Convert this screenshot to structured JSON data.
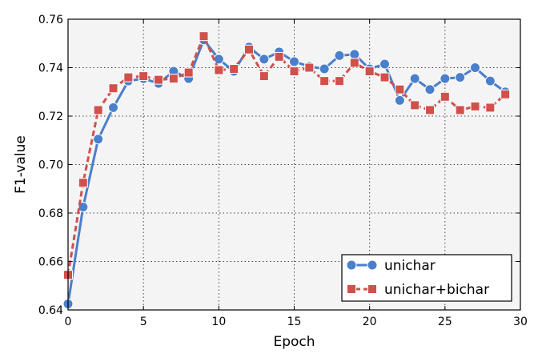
{
  "chart_data": {
    "type": "line",
    "title": "",
    "xlabel": "Epoch",
    "ylabel": "F1-value",
    "xlim": [
      0,
      30
    ],
    "ylim": [
      0.64,
      0.76
    ],
    "xticks": [
      "0",
      "5",
      "10",
      "15",
      "20",
      "25",
      "30"
    ],
    "yticks": [
      "0.64",
      "0.66",
      "0.68",
      "0.70",
      "0.72",
      "0.74",
      "0.76"
    ],
    "grid": true,
    "legend_position": "bottom-right",
    "x": [
      0,
      1,
      2,
      3,
      4,
      5,
      6,
      7,
      8,
      9,
      10,
      11,
      12,
      13,
      14,
      15,
      16,
      17,
      18,
      19,
      20,
      21,
      22,
      23,
      24,
      25,
      26,
      27,
      28,
      29
    ],
    "series": [
      {
        "name": "unichar",
        "color": "#4a7fcb",
        "marker": "circle",
        "line_style": "solid",
        "values": [
          0.6425,
          0.6825,
          0.7105,
          0.7235,
          0.7345,
          0.7355,
          0.7335,
          0.7385,
          0.7355,
          0.7515,
          0.7435,
          0.7385,
          0.7485,
          0.7435,
          0.7465,
          0.7425,
          0.7405,
          0.7395,
          0.745,
          0.7455,
          0.7395,
          0.7415,
          0.7265,
          0.7355,
          0.731,
          0.7355,
          0.736,
          0.74,
          0.7345,
          0.73
        ]
      },
      {
        "name": "unichar+bichar",
        "color": "#d0504c",
        "marker": "square",
        "line_style": "dashed",
        "values": [
          0.6545,
          0.6925,
          0.7225,
          0.7315,
          0.736,
          0.7365,
          0.735,
          0.7355,
          0.738,
          0.753,
          0.739,
          0.7395,
          0.7475,
          0.7365,
          0.7445,
          0.7385,
          0.74,
          0.7345,
          0.7345,
          0.742,
          0.7385,
          0.736,
          0.731,
          0.7245,
          0.7225,
          0.728,
          0.7225,
          0.724,
          0.7235,
          0.729
        ]
      }
    ]
  }
}
